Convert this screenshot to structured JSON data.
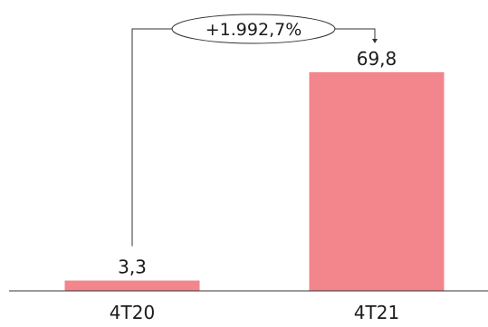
{
  "chart_data": {
    "type": "bar",
    "categories": [
      "4T20",
      "4T21"
    ],
    "values": [
      3.3,
      69.8
    ],
    "value_labels": [
      "3,3",
      "69,8"
    ],
    "bar_color": "#f2868c",
    "ylim": [
      0,
      69.8
    ],
    "grid": false,
    "legend": "none",
    "annotation": {
      "text": "+1.992,7%",
      "from_category": "4T20",
      "to_category": "4T21"
    }
  }
}
